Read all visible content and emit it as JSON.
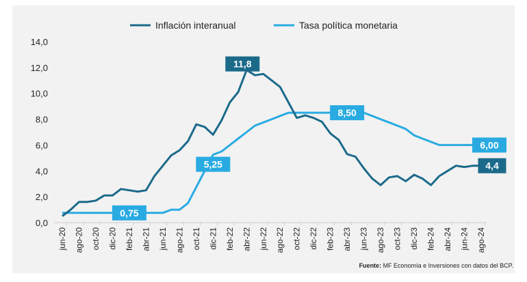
{
  "chart_data": {
    "type": "line",
    "title": "",
    "xlabel": "",
    "ylabel": "",
    "ylim": [
      0,
      14
    ],
    "yticks": [
      "0,0",
      "2,0",
      "4,0",
      "6,0",
      "8,0",
      "10,0",
      "12,0",
      "14,0"
    ],
    "legend_position": "top",
    "grid": false,
    "x": [
      "jun-20",
      "jul-20",
      "ago-20",
      "sep-20",
      "oct-20",
      "nov-20",
      "dic-20",
      "ene-21",
      "feb-21",
      "mar-21",
      "abr-21",
      "may-21",
      "jun-21",
      "jul-21",
      "ago-21",
      "sep-21",
      "oct-21",
      "nov-21",
      "dic-21",
      "ene-22",
      "feb-22",
      "mar-22",
      "abr-22",
      "may-22",
      "jun-22",
      "jul-22",
      "ago-22",
      "sep-22",
      "oct-22",
      "nov-22",
      "dic-22",
      "ene-23",
      "feb-23",
      "mar-23",
      "abr-23",
      "may-23",
      "jun-23",
      "jul-23",
      "ago-23",
      "sep-23",
      "oct-23",
      "nov-23",
      "dic-23",
      "ene-24",
      "feb-24",
      "mar-24",
      "abr-24",
      "may-24",
      "jun-24",
      "jul-24",
      "ago-24"
    ],
    "xtick_labels": [
      "jun-20",
      "ago-20",
      "oct-20",
      "dic-20",
      "feb-21",
      "abr-21",
      "jun-21",
      "ago-21",
      "oct-21",
      "dic-21",
      "feb-22",
      "abr-22",
      "jun-22",
      "ago-22",
      "oct-22",
      "dic-22",
      "feb-23",
      "abr-23",
      "jun-23",
      "ago-23",
      "oct-23",
      "dic-23",
      "feb-24",
      "abr-24",
      "jun-24",
      "ago-24"
    ],
    "series": [
      {
        "name": "Inflación interanual",
        "color": "#1b6a8a",
        "values": [
          0.5,
          1.0,
          1.6,
          1.6,
          1.7,
          2.1,
          2.1,
          2.6,
          2.5,
          2.4,
          2.5,
          3.6,
          4.4,
          5.2,
          5.6,
          6.3,
          7.6,
          7.4,
          6.8,
          7.9,
          9.3,
          10.1,
          11.8,
          11.4,
          11.5,
          11.0,
          10.5,
          9.3,
          8.1,
          8.3,
          8.1,
          7.8,
          6.9,
          6.4,
          5.3,
          5.1,
          4.2,
          3.4,
          2.9,
          3.5,
          3.6,
          3.2,
          3.7,
          3.4,
          2.9,
          3.6,
          4.0,
          4.4,
          4.3,
          4.4,
          4.4
        ]
      },
      {
        "name": "Tasa política monetaria",
        "color": "#29abe2",
        "values": [
          0.75,
          0.75,
          0.75,
          0.75,
          0.75,
          0.75,
          0.75,
          0.75,
          0.75,
          0.75,
          0.75,
          0.75,
          0.75,
          1.0,
          1.0,
          1.5,
          2.75,
          4.0,
          5.25,
          5.5,
          6.0,
          6.5,
          7.0,
          7.5,
          7.75,
          8.0,
          8.25,
          8.5,
          8.5,
          8.5,
          8.5,
          8.5,
          8.5,
          8.5,
          8.5,
          8.5,
          8.5,
          8.25,
          8.0,
          7.75,
          7.5,
          7.25,
          6.75,
          6.5,
          6.25,
          6.0,
          6.0,
          6.0,
          6.0,
          6.0,
          6.0
        ]
      }
    ],
    "annotations": [
      {
        "text": "11,8",
        "series": 0,
        "x": "abr-22"
      },
      {
        "text": "5,25",
        "series": 1,
        "x": "dic-21"
      },
      {
        "text": "0,75",
        "series": 1,
        "x": "feb-21"
      },
      {
        "text": "8,50",
        "series": 1,
        "x": "abr-23"
      },
      {
        "text": "6,00",
        "series": 1,
        "x": "ago-24"
      },
      {
        "text": "4,4",
        "series": 0,
        "x": "ago-24"
      }
    ],
    "source_bold": "Fuente:",
    "source_text": " MF Economía e Inversiones con datos del BCP."
  }
}
